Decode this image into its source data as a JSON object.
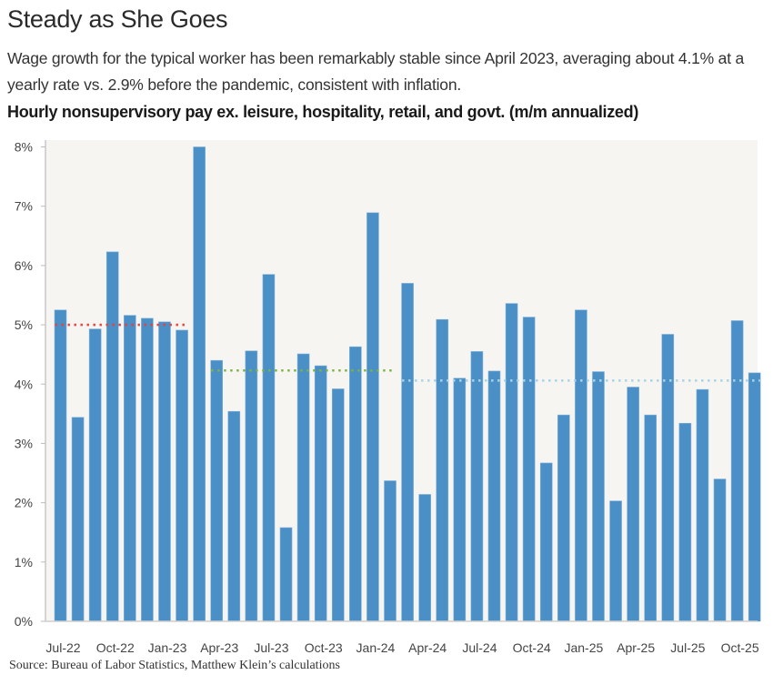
{
  "title": "Steady as She Goes",
  "subtitle": "Wage growth for the typical worker has been remarkably stable since April 2023, averaging about 4.1% at a yearly rate vs. 2.9% before the pandemic, consistent with inflation.",
  "chart_heading": "Hourly nonsupervisory pay ex. leisure, hospitality, retail, and govt. (m/m annualized)",
  "source": "Source: Bureau of Labor Statistics, Matthew Klein’s calculations",
  "colors": {
    "bar": "#4a8fc6",
    "plot_background": "#f6f5f2",
    "red_average": "#e8413c",
    "green_average": "#7cb342",
    "lightblue_average": "#a9d3e6"
  },
  "chart_data": {
    "type": "bar",
    "title": "Steady as She Goes",
    "xlabel": "",
    "ylabel": "",
    "ylim": [
      0,
      8
    ],
    "yticks": [
      0,
      1,
      2,
      3,
      4,
      5,
      6,
      7,
      8
    ],
    "ytick_labels": [
      "0%",
      "1%",
      "2%",
      "3%",
      "4%",
      "5%",
      "6%",
      "7%",
      "8%"
    ],
    "grid": false,
    "categories": [
      "Jul-22",
      "Aug-22",
      "Sep-22",
      "Oct-22",
      "Nov-22",
      "Dec-22",
      "Jan-23",
      "Feb-23",
      "Mar-23",
      "Apr-23",
      "May-23",
      "Jun-23",
      "Jul-23",
      "Aug-23",
      "Sep-23",
      "Oct-23",
      "Nov-23",
      "Dec-23",
      "Jan-24",
      "Feb-24",
      "Mar-24",
      "Apr-24",
      "May-24",
      "Jun-24",
      "Jul-24",
      "Aug-24",
      "Sep-24",
      "Oct-24",
      "Nov-24",
      "Dec-24",
      "Jan-25",
      "Feb-25",
      "Mar-25",
      "Apr-25",
      "May-25",
      "Jun-25",
      "Jul-25",
      "Aug-25",
      "Sep-25",
      "Oct-25",
      "Nov-25"
    ],
    "values": [
      5.25,
      3.44,
      4.93,
      6.23,
      5.16,
      5.11,
      5.05,
      4.91,
      8.0,
      4.4,
      3.54,
      4.56,
      5.85,
      1.58,
      4.51,
      4.31,
      3.92,
      4.63,
      6.89,
      2.37,
      5.7,
      2.14,
      5.09,
      4.1,
      4.55,
      4.22,
      5.36,
      5.13,
      2.67,
      3.48,
      5.25,
      4.21,
      2.03,
      3.95,
      3.48,
      4.84,
      3.34,
      3.91,
      2.4,
      5.07,
      4.19
    ],
    "xtick_labels": [
      "Jul-22",
      "Oct-22",
      "Jan-23",
      "Apr-23",
      "Jul-23",
      "Oct-23",
      "Jan-24",
      "Apr-24",
      "Jul-24",
      "Oct-24",
      "Jan-25",
      "Apr-25",
      "Jul-25",
      "Oct-25"
    ],
    "reference_lines": [
      {
        "name": "period-average-1",
        "value": 5.0,
        "from": "Jul-22",
        "to": "Feb-23",
        "color": "#e8413c",
        "style": "dotted"
      },
      {
        "name": "period-average-2",
        "value": 4.23,
        "from": "Apr-23",
        "to": "Feb-24",
        "color": "#7cb342",
        "style": "dotted"
      },
      {
        "name": "period-average-3",
        "value": 4.06,
        "from": "Mar-24",
        "to": "Nov-25",
        "color": "#a9d3e6",
        "style": "dotted"
      }
    ],
    "unit": "% (m/m annualized)"
  }
}
